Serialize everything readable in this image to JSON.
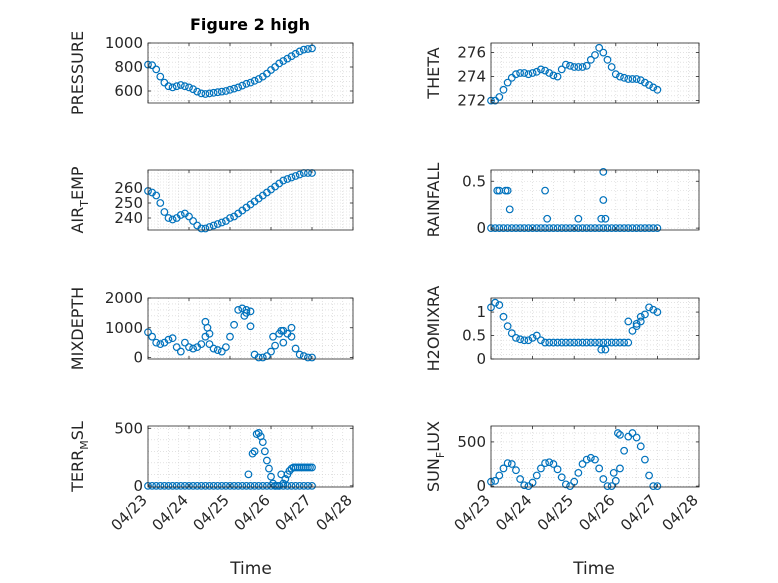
{
  "figure": {
    "title": "Figure 2 high",
    "xlabel": "Time",
    "marker_color": "#0072BD"
  },
  "chart_data": [
    {
      "type": "scatter",
      "ylabel": "PRESSURE",
      "ylabel_sub": "",
      "ylabel_after": "",
      "yticks": [
        600,
        800,
        1000
      ],
      "ylim": [
        500,
        1000
      ],
      "xticks": [],
      "xlim": [
        0,
        5
      ],
      "series": [
        {
          "x": [
            0.0,
            0.1,
            0.2,
            0.3,
            0.4,
            0.5,
            0.6,
            0.7,
            0.8,
            0.9,
            1.0,
            1.1,
            1.2,
            1.3,
            1.4,
            1.5,
            1.6,
            1.7,
            1.8,
            1.9,
            2.0,
            2.1,
            2.2,
            2.3,
            2.4,
            2.5,
            2.6,
            2.7,
            2.8,
            2.9,
            3.0,
            3.1,
            3.2,
            3.3,
            3.4,
            3.5,
            3.6,
            3.7,
            3.8,
            3.9,
            4.0
          ],
          "y": [
            820,
            815,
            780,
            720,
            670,
            640,
            630,
            640,
            650,
            640,
            630,
            615,
            595,
            580,
            575,
            580,
            585,
            590,
            595,
            600,
            610,
            620,
            630,
            645,
            660,
            670,
            685,
            700,
            720,
            745,
            775,
            800,
            830,
            850,
            870,
            890,
            910,
            930,
            945,
            950,
            955
          ]
        }
      ]
    },
    {
      "type": "scatter",
      "ylabel": "THETA",
      "ylabel_sub": "",
      "ylabel_after": "",
      "yticks": [
        272,
        274,
        276
      ],
      "ylim": [
        271.8,
        276.8
      ],
      "xticks": [],
      "xlim": [
        0,
        5
      ],
      "series": [
        {
          "x": [
            0.0,
            0.1,
            0.2,
            0.3,
            0.4,
            0.5,
            0.6,
            0.7,
            0.8,
            0.9,
            1.0,
            1.1,
            1.2,
            1.3,
            1.4,
            1.5,
            1.6,
            1.7,
            1.8,
            1.9,
            2.0,
            2.1,
            2.2,
            2.3,
            2.4,
            2.5,
            2.6,
            2.7,
            2.8,
            2.9,
            3.0,
            3.1,
            3.2,
            3.3,
            3.4,
            3.5,
            3.6,
            3.7,
            3.8,
            3.9,
            4.0
          ],
          "y": [
            272.0,
            272.0,
            272.3,
            272.9,
            273.5,
            273.9,
            274.2,
            274.3,
            274.3,
            274.2,
            274.3,
            274.4,
            274.6,
            274.5,
            274.3,
            274.1,
            274.0,
            274.6,
            275.0,
            274.9,
            274.8,
            274.8,
            274.8,
            274.9,
            275.4,
            275.8,
            276.4,
            276.0,
            275.4,
            274.8,
            274.2,
            274.0,
            273.9,
            273.8,
            273.8,
            273.8,
            273.7,
            273.5,
            273.3,
            273.1,
            272.9
          ]
        }
      ]
    },
    {
      "type": "scatter",
      "ylabel": "AIR",
      "ylabel_sub": "T",
      "ylabel_after": "EMP",
      "yticks": [
        240,
        250,
        260
      ],
      "ylim": [
        232,
        272
      ],
      "xticks": [],
      "xlim": [
        0,
        5
      ],
      "series": [
        {
          "x": [
            0.0,
            0.1,
            0.2,
            0.3,
            0.4,
            0.5,
            0.6,
            0.7,
            0.8,
            0.9,
            1.0,
            1.1,
            1.2,
            1.3,
            1.4,
            1.5,
            1.6,
            1.7,
            1.8,
            1.9,
            2.0,
            2.1,
            2.2,
            2.3,
            2.4,
            2.5,
            2.6,
            2.7,
            2.8,
            2.9,
            3.0,
            3.1,
            3.2,
            3.3,
            3.4,
            3.5,
            3.6,
            3.7,
            3.8,
            3.9,
            4.0
          ],
          "y": [
            258,
            257,
            255,
            250,
            244,
            240,
            239,
            240,
            242,
            243,
            241,
            238,
            235,
            233,
            233,
            234,
            235,
            236,
            237,
            238,
            240,
            241,
            243,
            245,
            247,
            249,
            251,
            253,
            255,
            257,
            259,
            261,
            263,
            265,
            266,
            267,
            268,
            269,
            270,
            270,
            270
          ]
        }
      ]
    },
    {
      "type": "scatter",
      "ylabel": "RAINFALL",
      "ylabel_sub": "",
      "ylabel_after": "",
      "yticks": [
        0,
        0.5
      ],
      "ylim": [
        -0.02,
        0.62
      ],
      "xticks": [],
      "xlim": [
        0,
        5
      ],
      "series": [
        {
          "x": [
            0.0,
            0.1,
            0.2,
            0.3,
            0.4,
            0.5,
            0.6,
            0.7,
            0.8,
            0.9,
            1.0,
            1.1,
            1.2,
            1.3,
            1.4,
            1.5,
            1.6,
            1.7,
            1.8,
            1.9,
            2.0,
            2.1,
            2.2,
            2.3,
            2.4,
            2.5,
            2.6,
            2.7,
            2.8,
            2.9,
            3.0,
            3.1,
            3.2,
            3.3,
            3.4,
            3.5,
            3.6,
            3.7,
            3.8,
            3.9,
            4.0,
            0.15,
            0.2,
            0.35,
            0.4,
            0.45,
            1.3,
            1.35,
            2.1,
            2.65,
            2.7,
            2.7,
            2.75
          ],
          "y": [
            0,
            0,
            0,
            0,
            0,
            0,
            0,
            0,
            0,
            0,
            0,
            0,
            0,
            0,
            0,
            0,
            0,
            0,
            0,
            0,
            0,
            0,
            0,
            0,
            0,
            0,
            0,
            0,
            0,
            0,
            0,
            0,
            0,
            0,
            0,
            0,
            0,
            0,
            0,
            0,
            0,
            0.4,
            0.4,
            0.4,
            0.4,
            0.2,
            0.4,
            0.1,
            0.1,
            0.1,
            0.3,
            0.6,
            0.1
          ]
        }
      ]
    },
    {
      "type": "scatter",
      "ylabel": "MIXDEPTH",
      "ylabel_sub": "",
      "ylabel_after": "",
      "yticks": [
        0,
        1000,
        2000
      ],
      "ylim": [
        -50,
        2000
      ],
      "xticks": [],
      "xlim": [
        0,
        5
      ],
      "series": [
        {
          "x": [
            0.0,
            0.1,
            0.2,
            0.3,
            0.4,
            0.5,
            0.6,
            0.7,
            0.8,
            0.9,
            1.0,
            1.1,
            1.2,
            1.3,
            1.4,
            1.5,
            1.6,
            1.7,
            1.8,
            1.9,
            2.0,
            2.1,
            2.2,
            2.3,
            2.4,
            2.5,
            2.6,
            2.7,
            2.8,
            2.9,
            3.0,
            3.1,
            3.2,
            3.3,
            3.4,
            3.5,
            3.6,
            3.7,
            3.8,
            3.9,
            4.0,
            1.4,
            1.45,
            1.5,
            2.35,
            2.4,
            2.5,
            3.05,
            3.25,
            3.3,
            3.5
          ],
          "y": [
            850,
            700,
            500,
            450,
            500,
            600,
            650,
            350,
            200,
            500,
            350,
            300,
            350,
            450,
            700,
            450,
            300,
            250,
            200,
            350,
            700,
            1100,
            1600,
            1650,
            1600,
            1550,
            100,
            0,
            0,
            50,
            200,
            400,
            800,
            900,
            800,
            700,
            300,
            100,
            50,
            0,
            0,
            1200,
            1000,
            800,
            1400,
            1500,
            1050,
            700,
            900,
            500,
            1000
          ]
        }
      ]
    },
    {
      "type": "scatter",
      "ylabel": "H2OMIXRA",
      "ylabel_sub": "",
      "ylabel_after": "",
      "yticks": [
        0,
        0.5,
        1
      ],
      "ylim": [
        0,
        1.3
      ],
      "xticks": [],
      "xlim": [
        0,
        5
      ],
      "series": [
        {
          "x": [
            0.0,
            0.1,
            0.2,
            0.3,
            0.4,
            0.5,
            0.6,
            0.7,
            0.8,
            0.9,
            1.0,
            1.1,
            1.2,
            1.3,
            1.4,
            1.5,
            1.6,
            1.7,
            1.8,
            1.9,
            2.0,
            2.1,
            2.2,
            2.3,
            2.4,
            2.5,
            2.6,
            2.7,
            2.8,
            2.9,
            3.0,
            3.1,
            3.2,
            3.3,
            3.4,
            3.5,
            3.6,
            3.7,
            3.8,
            3.9,
            4.0,
            2.65,
            2.75,
            3.3,
            3.5,
            3.6
          ],
          "y": [
            1.1,
            1.2,
            1.15,
            0.9,
            0.7,
            0.55,
            0.45,
            0.42,
            0.4,
            0.4,
            0.45,
            0.5,
            0.4,
            0.35,
            0.35,
            0.35,
            0.35,
            0.35,
            0.35,
            0.35,
            0.35,
            0.35,
            0.35,
            0.35,
            0.35,
            0.35,
            0.35,
            0.35,
            0.35,
            0.35,
            0.35,
            0.35,
            0.35,
            0.35,
            0.6,
            0.75,
            0.8,
            0.95,
            1.1,
            1.05,
            1.0,
            0.2,
            0.2,
            0.8,
            0.7,
            0.9
          ]
        }
      ]
    },
    {
      "type": "scatter",
      "ylabel": "TERR",
      "ylabel_sub": "M",
      "ylabel_after": "SL",
      "yticks": [
        0,
        500
      ],
      "ylim": [
        -10,
        520
      ],
      "xticks": [
        "04/23",
        "04/24",
        "04/25",
        "04/26",
        "04/27",
        "04/28"
      ],
      "xlim": [
        0,
        5
      ],
      "series": [
        {
          "x": [
            0.0,
            0.1,
            0.2,
            0.3,
            0.4,
            0.5,
            0.6,
            0.7,
            0.8,
            0.9,
            1.0,
            1.1,
            1.2,
            1.3,
            1.4,
            1.5,
            1.6,
            1.7,
            1.8,
            1.9,
            2.0,
            2.1,
            2.2,
            2.3,
            2.4,
            2.5,
            2.6,
            2.7,
            2.8,
            2.9,
            3.0,
            3.1,
            3.2,
            3.3,
            3.4,
            3.5,
            3.6,
            3.7,
            3.8,
            3.9,
            4.0,
            2.45,
            2.55,
            2.6,
            3.25
          ],
          "y": [
            0,
            0,
            0,
            0,
            0,
            0,
            0,
            0,
            0,
            0,
            0,
            0,
            0,
            0,
            0,
            0,
            0,
            0,
            0,
            0,
            0,
            0,
            0,
            0,
            0,
            0,
            0,
            0,
            0,
            0,
            0,
            0,
            0,
            0,
            0,
            0,
            0,
            0,
            0,
            0,
            0,
            100,
            280,
            300,
            100
          ]
        },
        {
          "x": [
            2.65,
            2.7,
            2.75,
            2.8,
            2.85,
            2.9,
            2.95,
            3.0,
            3.05,
            3.1,
            3.15,
            3.2,
            3.3,
            3.35,
            3.4,
            3.45,
            3.5,
            3.55,
            3.6,
            3.65,
            3.7,
            3.75,
            3.8,
            3.85,
            3.9,
            3.95,
            4.0
          ],
          "y": [
            450,
            460,
            430,
            380,
            300,
            220,
            150,
            80,
            20,
            0,
            0,
            0,
            20,
            60,
            100,
            130,
            150,
            160,
            160,
            160,
            160,
            160,
            160,
            160,
            160,
            160,
            160
          ]
        }
      ]
    },
    {
      "type": "scatter",
      "ylabel": "SUN",
      "ylabel_sub": "F",
      "ylabel_after": "LUX",
      "yticks": [
        0,
        500
      ],
      "ylim": [
        -10,
        680
      ],
      "xticks": [
        "04/23",
        "04/24",
        "04/25",
        "04/26",
        "04/27",
        "04/28"
      ],
      "xlim": [
        0,
        5
      ],
      "series": [
        {
          "x": [
            0.0,
            0.1,
            0.2,
            0.3,
            0.4,
            0.5,
            0.6,
            0.7,
            0.8,
            0.9,
            1.0,
            1.1,
            1.2,
            1.3,
            1.4,
            1.5,
            1.6,
            1.7,
            1.8,
            1.9,
            2.0,
            2.1,
            2.2,
            2.3,
            2.4,
            2.5,
            2.6,
            2.7,
            2.8,
            2.9,
            3.0,
            3.1,
            3.2,
            3.3,
            3.4,
            3.5,
            3.6,
            3.7,
            3.8,
            3.9,
            4.0,
            2.95,
            3.05,
            3.1
          ],
          "y": [
            50,
            60,
            120,
            200,
            260,
            250,
            180,
            80,
            10,
            0,
            40,
            120,
            200,
            260,
            270,
            250,
            190,
            100,
            20,
            0,
            50,
            150,
            250,
            300,
            320,
            300,
            200,
            80,
            0,
            0,
            60,
            200,
            400,
            560,
            600,
            550,
            450,
            300,
            120,
            0,
            0,
            150,
            600,
            580
          ]
        }
      ]
    }
  ]
}
